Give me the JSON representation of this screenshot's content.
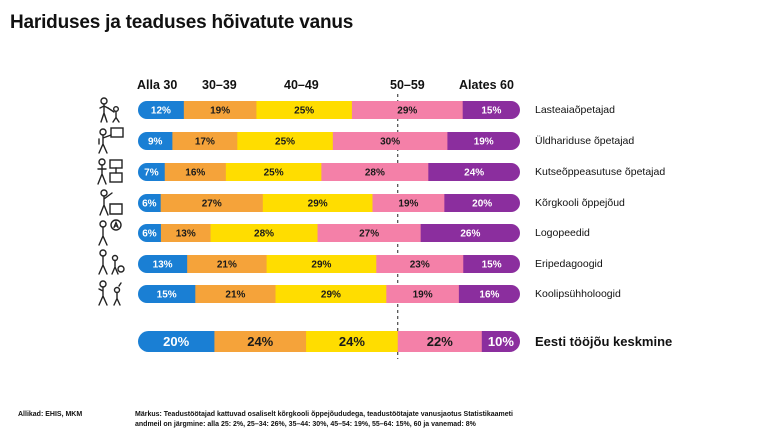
{
  "title": "Hariduses ja teaduses hõivatute vanus",
  "column_headers": [
    "Alla 30",
    "30–39",
    "40–49",
    "50–59",
    "Alates 60"
  ],
  "colors": {
    "alla30": "#1a7fd4",
    "c30_39": "#f5a33a",
    "c40_49": "#ffdd00",
    "c50_59": "#f480a8",
    "alates60": "#8b2e9e"
  },
  "icons": [
    "teacher-child-icon",
    "teacher-board-icon",
    "vocational-teacher-icon",
    "lecturer-icon",
    "speech-therapist-icon",
    "special-educator-icon",
    "school-psychologist-icon"
  ],
  "chart_data": {
    "type": "bar",
    "orientation": "horizontal-stacked-100",
    "title": "Hariduses ja teaduses hõivatute vanus",
    "categories": [
      "Lasteaiaõpetajad",
      "Üldhariduse õpetajad",
      "Kutseõppeasutuse õpetajad",
      "Kõrgkooli õppejõud",
      "Logopeedid",
      "Eripedagoogid",
      "Koolipsühholoogid"
    ],
    "series": [
      {
        "name": "Alla 30",
        "values": [
          12,
          9,
          7,
          6,
          6,
          13,
          15
        ]
      },
      {
        "name": "30–39",
        "values": [
          19,
          17,
          16,
          27,
          13,
          21,
          21
        ]
      },
      {
        "name": "40–49",
        "values": [
          25,
          25,
          25,
          29,
          28,
          29,
          29
        ]
      },
      {
        "name": "50–59",
        "values": [
          29,
          30,
          28,
          19,
          27,
          23,
          19
        ]
      },
      {
        "name": "Alates 60",
        "values": [
          15,
          19,
          24,
          20,
          26,
          15,
          16
        ]
      }
    ],
    "reference": {
      "label": "Eesti tööjõu keskmine",
      "values": [
        20,
        24,
        24,
        22,
        10
      ]
    },
    "xlim": [
      0,
      100
    ],
    "unit": "%"
  },
  "footer": {
    "source": "Allikad: EHIS, MKM",
    "note_line1": "Märkus: Teadustöötajad kattuvad osaliselt kõrgkooli õppejõududega, teadustöötajate vanusjaotus Statistikaameti",
    "note_line2": "andmeil on järgmine: alla 25: 2%, 25–34: 26%, 35–44: 30%, 45–54: 19%, 55–64: 15%, 60 ja vanemad: 8%"
  }
}
